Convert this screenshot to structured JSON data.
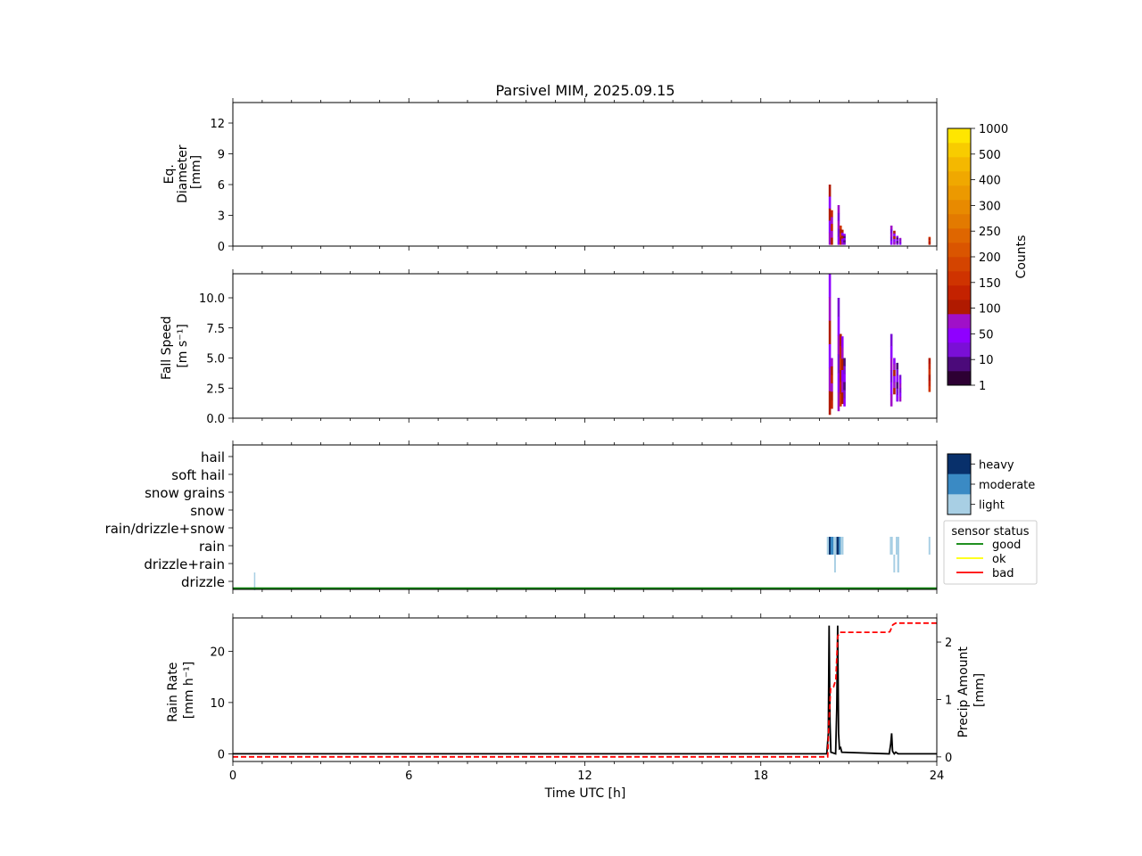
{
  "title": "Parsivel MIM, 2025.09.15",
  "x_axis": {
    "label": "Time UTC [h]",
    "range": [
      0,
      24
    ],
    "ticks": [
      0,
      6,
      12,
      18,
      24
    ],
    "tick_labels": [
      "0",
      "6",
      "12",
      "18",
      "24"
    ]
  },
  "panels": {
    "diameter": {
      "ylabel_lines": [
        "Eq.",
        "Diameter",
        "[mm]"
      ]
    },
    "speed": {
      "ylabel_lines": [
        "Fall Speed",
        "[m s⁻¹]"
      ]
    },
    "rain": {
      "ylabel_lines": [
        "Rain Rate",
        "[mm h⁻¹]"
      ],
      "ylabel2_lines": [
        "Precip Amount",
        "[mm]"
      ]
    }
  },
  "colorbar_counts": {
    "label": "Counts",
    "tick_labels": [
      "1",
      "10",
      "50",
      "100",
      "150",
      "200",
      "250",
      "300",
      "400",
      "500",
      "1000"
    ],
    "colors": [
      "#2d0033",
      "#4b0a7a",
      "#7a0fd6",
      "#8f00ff",
      "#a010c8",
      "#b01a00",
      "#c42200",
      "#cf3300",
      "#d44400",
      "#da5500",
      "#df6600",
      "#e37a00",
      "#e88a00",
      "#ec9900",
      "#f0a800",
      "#f4b800",
      "#f8cc00",
      "#ffe600"
    ]
  },
  "colorbar_intensity": {
    "labels": [
      "heavy",
      "moderate",
      "light"
    ],
    "colors": [
      "#08306b",
      "#3a8ac4",
      "#a8cfe4"
    ]
  },
  "sensor_status": {
    "title": "sensor status",
    "items": [
      {
        "label": "good",
        "color": "#008000"
      },
      {
        "label": "ok",
        "color": "#ffff00"
      },
      {
        "label": "bad",
        "color": "#ff0000"
      }
    ]
  },
  "chart_data": [
    {
      "type": "heatmap",
      "panel": "diameter",
      "ylabel": "Eq. Diameter [mm]",
      "ylim": [
        0,
        14
      ],
      "yticks": [
        0,
        3,
        6,
        9,
        12
      ],
      "ytick_labels": [
        "0",
        "3",
        "6",
        "9",
        "12"
      ],
      "columns": [
        {
          "t": 20.35,
          "dmax": 6.0,
          "cbin": 4
        },
        {
          "t": 20.42,
          "dmax": 3.5,
          "cbin": 5
        },
        {
          "t": 20.65,
          "dmax": 4.0,
          "cbin": 3
        },
        {
          "t": 20.72,
          "dmax": 2.0,
          "cbin": 6
        },
        {
          "t": 20.78,
          "dmax": 1.6,
          "cbin": 4
        },
        {
          "t": 20.85,
          "dmax": 1.2,
          "cbin": 2
        },
        {
          "t": 22.45,
          "dmax": 2.0,
          "cbin": 3
        },
        {
          "t": 22.55,
          "dmax": 1.5,
          "cbin": 4
        },
        {
          "t": 22.65,
          "dmax": 1.0,
          "cbin": 2
        },
        {
          "t": 22.75,
          "dmax": 0.8,
          "cbin": 3
        },
        {
          "t": 23.75,
          "dmax": 0.9,
          "cbin": 6
        }
      ]
    },
    {
      "type": "heatmap",
      "panel": "speed",
      "ylabel": "Fall Speed [m s⁻¹]",
      "ylim": [
        0,
        12
      ],
      "yticks": [
        0,
        2.5,
        5,
        7.5,
        10
      ],
      "ytick_labels": [
        "0.0",
        "2.5",
        "5.0",
        "7.5",
        "10.0"
      ],
      "columns": [
        {
          "t": 20.35,
          "vmin": 0.3,
          "vmax": 12.0,
          "cbin": 4
        },
        {
          "t": 20.42,
          "vmin": 0.8,
          "vmax": 5.0,
          "cbin": 5
        },
        {
          "t": 20.65,
          "vmin": 0.6,
          "vmax": 10.0,
          "cbin": 3
        },
        {
          "t": 20.72,
          "vmin": 1.0,
          "vmax": 7.0,
          "cbin": 6
        },
        {
          "t": 20.78,
          "vmin": 1.2,
          "vmax": 6.8,
          "cbin": 4
        },
        {
          "t": 20.85,
          "vmin": 1.0,
          "vmax": 5.0,
          "cbin": 2
        },
        {
          "t": 22.45,
          "vmin": 1.0,
          "vmax": 7.0,
          "cbin": 3
        },
        {
          "t": 22.55,
          "vmin": 2.0,
          "vmax": 5.0,
          "cbin": 4
        },
        {
          "t": 22.65,
          "vmin": 1.4,
          "vmax": 4.6,
          "cbin": 2
        },
        {
          "t": 22.75,
          "vmin": 1.4,
          "vmax": 3.6,
          "cbin": 3
        },
        {
          "t": 23.75,
          "vmin": 2.2,
          "vmax": 5.0,
          "cbin": 6
        }
      ]
    },
    {
      "type": "heatmap",
      "panel": "precip_type",
      "categories": [
        "drizzle",
        "drizzle+rain",
        "rain",
        "rain/drizzle+snow",
        "snow",
        "snow grains",
        "soft hail",
        "hail"
      ],
      "cells": [
        {
          "t0": 0.72,
          "t1": 0.74,
          "cat": 0,
          "intensity": "light"
        },
        {
          "t0": 20.25,
          "t1": 20.32,
          "cat": 2,
          "intensity": "light"
        },
        {
          "t0": 20.32,
          "t1": 20.38,
          "cat": 2,
          "intensity": "heavy"
        },
        {
          "t0": 20.38,
          "t1": 20.48,
          "cat": 2,
          "intensity": "moderate"
        },
        {
          "t0": 20.48,
          "t1": 20.58,
          "cat": 2,
          "intensity": "light"
        },
        {
          "t0": 20.58,
          "t1": 20.66,
          "cat": 2,
          "intensity": "heavy"
        },
        {
          "t0": 20.66,
          "t1": 20.72,
          "cat": 2,
          "intensity": "moderate"
        },
        {
          "t0": 20.72,
          "t1": 20.82,
          "cat": 2,
          "intensity": "light"
        },
        {
          "t0": 20.5,
          "t1": 20.56,
          "cat": 1,
          "intensity": "light"
        },
        {
          "t0": 22.4,
          "t1": 22.5,
          "cat": 2,
          "intensity": "light"
        },
        {
          "t0": 22.52,
          "t1": 22.58,
          "cat": 1,
          "intensity": "light"
        },
        {
          "t0": 22.6,
          "t1": 22.72,
          "cat": 2,
          "intensity": "light"
        },
        {
          "t0": 22.65,
          "t1": 22.72,
          "cat": 1,
          "intensity": "light"
        },
        {
          "t0": 23.72,
          "t1": 23.78,
          "cat": 2,
          "intensity": "light"
        }
      ],
      "sensor_status_line": {
        "status": "good",
        "t0": 0,
        "t1": 24
      }
    },
    {
      "type": "line",
      "panel": "rain",
      "ylabel": "Rain Rate [mm h⁻¹]",
      "ylim": [
        -1.5,
        26.5
      ],
      "yticks": [
        0,
        10,
        20
      ],
      "ytick_labels": [
        "0",
        "10",
        "20"
      ],
      "y2label": "Precip Amount [mm]",
      "y2lim": [
        -0.08,
        2.42
      ],
      "y2ticks": [
        0,
        1,
        2
      ],
      "y2tick_labels": [
        "0",
        "1",
        "2"
      ],
      "series": [
        {
          "line": "solid",
          "color": "#000000",
          "axis": "left",
          "points": [
            [
              0,
              0
            ],
            [
              20.25,
              0
            ],
            [
              20.3,
              4
            ],
            [
              20.33,
              25
            ],
            [
              20.36,
              6
            ],
            [
              20.39,
              0.3
            ],
            [
              20.55,
              0
            ],
            [
              20.59,
              9
            ],
            [
              20.62,
              25
            ],
            [
              20.65,
              4
            ],
            [
              20.68,
              1
            ],
            [
              20.72,
              1.2
            ],
            [
              20.76,
              0.3
            ],
            [
              22.38,
              0
            ],
            [
              22.43,
              2
            ],
            [
              22.46,
              4
            ],
            [
              22.49,
              0.5
            ],
            [
              22.55,
              0
            ],
            [
              22.6,
              0.3
            ],
            [
              22.68,
              0
            ],
            [
              24,
              0
            ]
          ]
        },
        {
          "line": "dashed",
          "color": "#ff0000",
          "axis": "right",
          "points": [
            [
              0,
              0
            ],
            [
              20.28,
              0
            ],
            [
              20.32,
              0.55
            ],
            [
              20.38,
              1.2
            ],
            [
              20.48,
              1.22
            ],
            [
              20.56,
              1.35
            ],
            [
              20.62,
              2.1
            ],
            [
              20.7,
              2.17
            ],
            [
              22.3,
              2.17
            ],
            [
              22.4,
              2.18
            ],
            [
              22.5,
              2.3
            ],
            [
              22.6,
              2.33
            ],
            [
              24,
              2.33
            ]
          ]
        }
      ]
    }
  ]
}
